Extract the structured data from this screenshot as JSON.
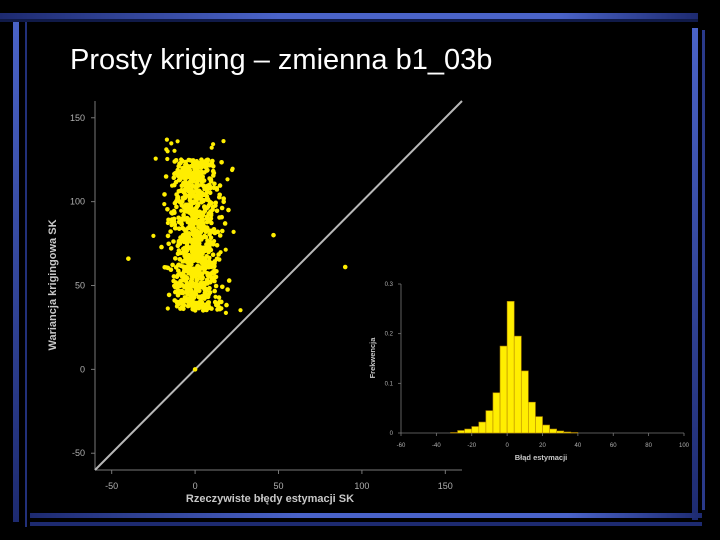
{
  "slide": {
    "title": "Prosty kriging – zmienna b1_03b",
    "colors": {
      "frame_blue": "#4a63c8",
      "frame_dark": "#1a2a6a",
      "background": "#000000"
    }
  },
  "chart_data": [
    {
      "type": "scatter",
      "xlabel": "Rzeczywiste błędy estymacji SK",
      "ylabel": "Wariancja krigingowa SK",
      "xlim": [
        -60,
        160
      ],
      "ylim": [
        -60,
        160
      ],
      "x_ticks": [
        "-50",
        "0",
        "50",
        "100",
        "150"
      ],
      "y_ticks": [
        "150",
        "100",
        "50",
        "0",
        "-50"
      ],
      "reference_line": "y = x",
      "point_color": "#ffee00",
      "cloud": {
        "x_center": 0,
        "x_spread": 10,
        "y_min": 35,
        "y_max": 125
      },
      "outliers": [
        {
          "x": 90,
          "y": 61
        },
        {
          "x": 0,
          "y": 0
        },
        {
          "x": 47,
          "y": 80
        },
        {
          "x": 18,
          "y": 87
        },
        {
          "x": -40,
          "y": 66
        },
        {
          "x": 20,
          "y": 95
        }
      ]
    },
    {
      "type": "bar",
      "xlabel": "Błąd estymacji",
      "ylabel": "Frekwencja",
      "xlim": [
        -60,
        100
      ],
      "ylim": [
        0,
        0.3
      ],
      "x_ticks": [
        "-60",
        "-40",
        "-20",
        "0",
        "20",
        "40",
        "60",
        "80",
        "100"
      ],
      "y_ticks": [
        "0.3",
        "0.2",
        "0.1",
        "0"
      ],
      "bar_color": "#ffee00",
      "bin_width": 4,
      "bin_starts": [
        -32,
        -28,
        -24,
        -20,
        -16,
        -12,
        -8,
        -4,
        0,
        4,
        8,
        12,
        16,
        20,
        24,
        28,
        32,
        36
      ],
      "values": [
        0.001,
        0.005,
        0.008,
        0.013,
        0.022,
        0.045,
        0.081,
        0.175,
        0.265,
        0.195,
        0.125,
        0.062,
        0.033,
        0.016,
        0.008,
        0.004,
        0.002,
        0.001
      ]
    }
  ]
}
